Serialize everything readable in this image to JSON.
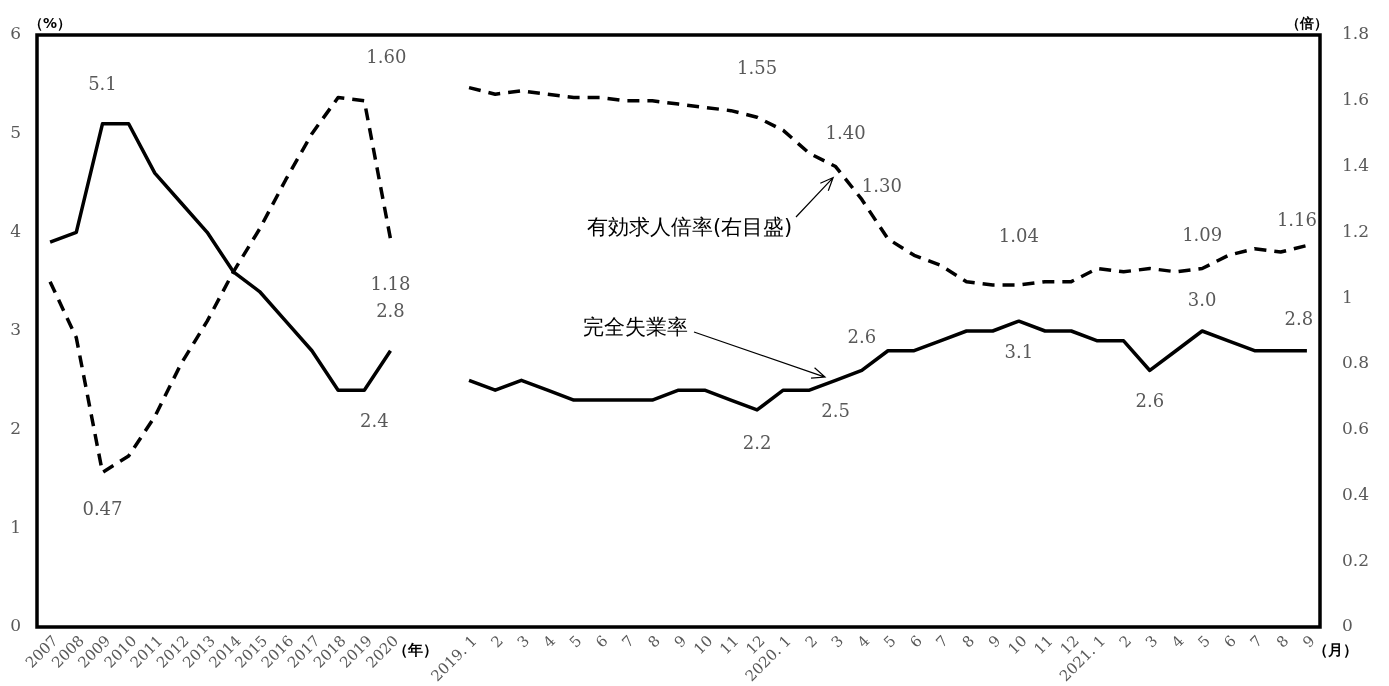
{
  "chart_data": {
    "type": "line",
    "ylabel": "（%）",
    "y2label": "（倍）",
    "categories": [
      "2007",
      "2008",
      "2009",
      "2010",
      "2011",
      "2012",
      "2013",
      "2014",
      "2015",
      "2016",
      "2017",
      "2018",
      "2019",
      "2020",
      null,
      null,
      "2019. 1",
      "2",
      "3",
      "4",
      "5",
      "6",
      "7",
      "8",
      "9",
      "10",
      "11",
      "12",
      "2020. 1",
      "2",
      "3",
      "4",
      "5",
      "6",
      "7",
      "8",
      "9",
      "10",
      "11",
      "12",
      "2021. 1",
      "2",
      "3",
      "4",
      "5",
      "6",
      "7",
      "8",
      "9"
    ],
    "series": [
      {
        "name": "完全失業率",
        "color": "#000000",
        "line_style": "solid",
        "values": [
          3.9,
          4.0,
          5.1,
          5.1,
          4.6,
          4.3,
          4.0,
          3.6,
          3.4,
          3.1,
          2.8,
          2.4,
          2.4,
          2.8,
          null,
          null,
          2.5,
          2.4,
          2.5,
          2.4,
          2.3,
          2.3,
          2.3,
          2.3,
          2.4,
          2.4,
          2.3,
          2.2,
          2.4,
          2.4,
          2.5,
          2.6,
          2.8,
          2.8,
          2.9,
          3.0,
          3.0,
          3.1,
          3.0,
          3.0,
          2.9,
          2.9,
          2.6,
          2.8,
          3.0,
          2.9,
          2.8,
          2.8,
          2.8
        ],
        "value_labels": [
          null,
          null,
          "5.1",
          null,
          null,
          null,
          null,
          null,
          null,
          null,
          null,
          null,
          "2.4",
          "2.8",
          null,
          null,
          null,
          null,
          null,
          null,
          null,
          null,
          null,
          null,
          null,
          null,
          null,
          "2.2",
          null,
          null,
          "2.5",
          "2.6",
          null,
          null,
          null,
          null,
          null,
          "3.1",
          null,
          null,
          null,
          null,
          "2.6",
          null,
          "3.0",
          null,
          null,
          null,
          "2.8"
        ]
      },
      {
        "name": "有効求人倍率(右目盛)",
        "color": "#000000",
        "line_style": "dashed",
        "axis": "y2",
        "values": [
          1.05,
          0.88,
          0.47,
          0.52,
          0.64,
          0.8,
          0.93,
          1.08,
          1.21,
          1.36,
          1.5,
          1.61,
          1.6,
          1.18,
          null,
          null,
          1.64,
          1.62,
          1.63,
          1.62,
          1.61,
          1.61,
          1.6,
          1.6,
          1.59,
          1.58,
          1.57,
          1.55,
          1.51,
          1.44,
          1.4,
          1.3,
          1.18,
          1.13,
          1.1,
          1.05,
          1.04,
          1.04,
          1.05,
          1.05,
          1.09,
          1.08,
          1.09,
          1.08,
          1.09,
          1.13,
          1.15,
          1.14,
          1.16
        ],
        "value_labels": [
          null,
          null,
          "0.47",
          null,
          null,
          null,
          null,
          null,
          null,
          null,
          null,
          null,
          "1.60",
          "1.18",
          null,
          null,
          null,
          null,
          null,
          null,
          null,
          null,
          null,
          null,
          null,
          null,
          null,
          "1.55",
          null,
          null,
          "1.40",
          "1.30",
          null,
          null,
          null,
          null,
          null,
          "1.04",
          null,
          null,
          null,
          null,
          null,
          null,
          "1.09",
          null,
          null,
          null,
          "1.16"
        ]
      }
    ],
    "ylim": [
      0,
      6
    ],
    "yticks": [
      0,
      1,
      2,
      3,
      4,
      5,
      6
    ],
    "y2lim": [
      0,
      1.8
    ],
    "y2ticks": [
      0,
      0.2,
      0.4,
      0.6,
      0.8,
      1,
      1.2,
      1.4,
      1.6,
      1.8
    ],
    "annotations": [
      "（年）",
      "（月）"
    ],
    "grid": false,
    "legend": false,
    "marker": "none"
  }
}
